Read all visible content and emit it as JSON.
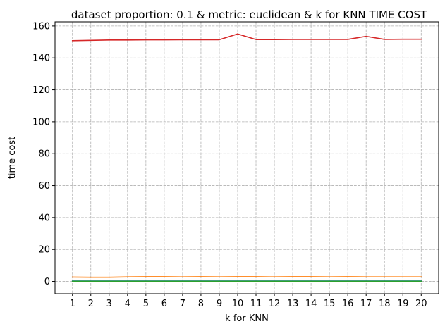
{
  "chart_data": {
    "type": "line",
    "title": "dataset proportion: 0.1 & metric: euclidean & k for KNN TIME COST",
    "xlabel": "k for KNN",
    "ylabel": "time cost",
    "x": [
      1,
      2,
      3,
      4,
      5,
      6,
      7,
      8,
      9,
      10,
      11,
      12,
      13,
      14,
      15,
      16,
      17,
      18,
      19,
      20
    ],
    "xlim": [
      0.05,
      20.95
    ],
    "ylim": [
      -7.7,
      162.6
    ],
    "yticks": [
      0,
      20,
      40,
      60,
      80,
      100,
      120,
      140,
      160
    ],
    "grid": true,
    "series": [
      {
        "color": "#d62728",
        "values": [
          150.8,
          151.0,
          151.2,
          151.2,
          151.3,
          151.3,
          151.4,
          151.4,
          151.4,
          155.0,
          151.5,
          151.5,
          151.6,
          151.6,
          151.6,
          151.6,
          153.5,
          151.6,
          151.7,
          151.7
        ]
      },
      {
        "color": "#ff7f0e",
        "values": [
          2.7,
          2.6,
          2.6,
          2.8,
          2.9,
          2.9,
          2.8,
          2.9,
          2.8,
          2.9,
          2.9,
          2.8,
          2.9,
          2.9,
          2.8,
          2.9,
          2.8,
          2.8,
          2.8,
          2.8
        ]
      },
      {
        "color": "#1f77b4",
        "values": [
          0.3,
          0.3,
          0.3,
          0.3,
          0.3,
          0.3,
          0.3,
          0.3,
          0.3,
          0.3,
          0.3,
          0.3,
          0.3,
          0.3,
          0.3,
          0.3,
          0.3,
          0.3,
          0.3,
          0.3
        ]
      },
      {
        "color": "#2ca02c",
        "values": [
          0.1,
          0.1,
          0.1,
          0.1,
          0.1,
          0.1,
          0.1,
          0.1,
          0.1,
          0.1,
          0.1,
          0.1,
          0.1,
          0.1,
          0.1,
          0.1,
          0.1,
          0.1,
          0.1,
          0.1
        ]
      }
    ]
  }
}
